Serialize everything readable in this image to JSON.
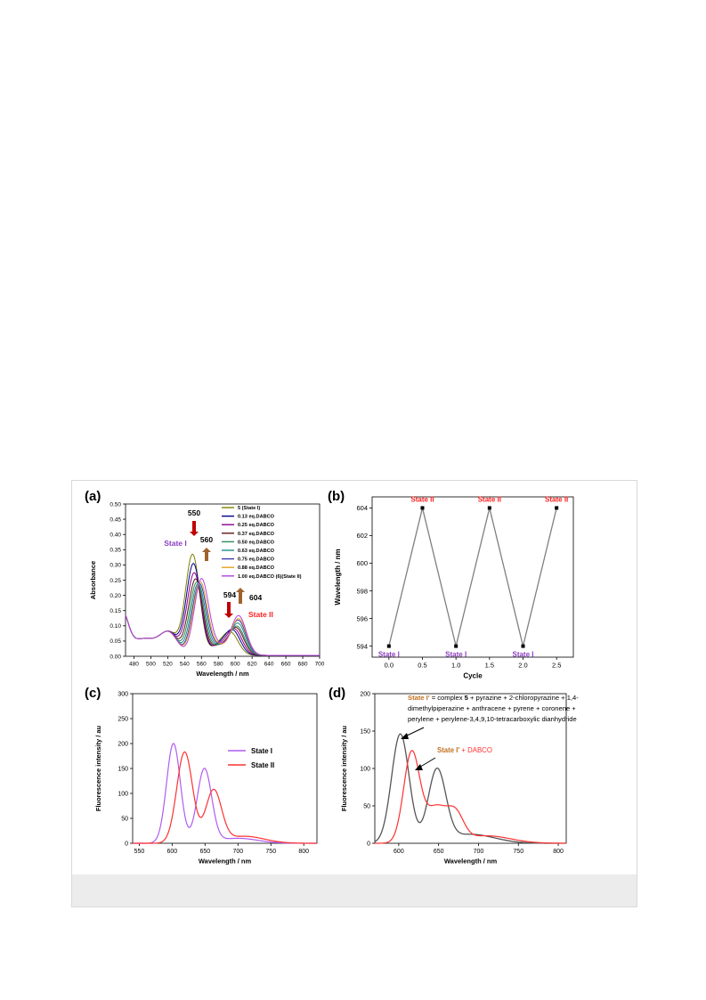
{
  "panels": [
    {
      "label": "(a)",
      "chart_data": {
        "type": "line",
        "xlabel": "Wavelength / nm",
        "ylabel": "Absorbance",
        "xlim": [
          470,
          700
        ],
        "ylim": [
          0,
          0.5
        ],
        "xticks": [
          480,
          500,
          520,
          540,
          560,
          580,
          600,
          620,
          640,
          660,
          680,
          700
        ],
        "yticks": [
          0.0,
          0.05,
          0.1,
          0.15,
          0.2,
          0.25,
          0.3,
          0.35,
          0.4,
          0.45,
          0.5
        ],
        "ytick_decimals": 2,
        "legend_position": "top-right",
        "series": [
          {
            "name": "5 (State I)",
            "color": "#808000",
            "p1": [
              549.5,
              0.38
            ],
            "p2": [
              595,
              0.11
            ]
          },
          {
            "name": "0.13 eq.DABCO",
            "color": "#00008b",
            "p1": [
              550.5,
              0.35
            ],
            "p2": [
              597,
              0.12
            ]
          },
          {
            "name": "0.25 eq.DABCO",
            "color": "#8b008b",
            "p1": [
              551.5,
              0.32
            ],
            "p2": [
              599,
              0.125
            ]
          },
          {
            "name": "0.37 eq.DABCO",
            "color": "#5c1a1a",
            "p1": [
              553,
              0.3
            ],
            "p2": [
              601,
              0.13
            ]
          },
          {
            "name": "0.50 eq.DABCO",
            "color": "#2e8b57",
            "p1": [
              554.5,
              0.29
            ],
            "p2": [
              602,
              0.135
            ]
          },
          {
            "name": "0.63 eq.DABCO",
            "color": "#1e8b8b",
            "p1": [
              556,
              0.285
            ],
            "p2": [
              603,
              0.145
            ]
          },
          {
            "name": "0.75 eq.DABCO",
            "color": "#3c3cb4",
            "p1": [
              557.5,
              0.285
            ],
            "p2": [
              603.5,
              0.155
            ]
          },
          {
            "name": "0.88 eq.DABCO",
            "color": "#e6a020",
            "p1": [
              558.5,
              0.29
            ],
            "p2": [
              604,
              0.16
            ]
          },
          {
            "name": "1.00 eq.DABCO (6)(State II)",
            "color": "#b040e0",
            "p1": [
              560,
              0.3
            ],
            "p2": [
              604,
              0.17
            ]
          }
        ],
        "annotations": {
          "peak_550": "550",
          "peak_560": "560",
          "peak_594": "594",
          "peak_604": "604",
          "state_i": "State I",
          "state_ii": "State II"
        },
        "arrow_colors": {
          "down": "#c00000",
          "up": "#a0622d"
        }
      }
    },
    {
      "label": "(b)",
      "chart_data": {
        "type": "line",
        "xlabel": "Cycle",
        "ylabel": "Wavelength / nm",
        "xlim": [
          -0.25,
          2.75
        ],
        "ylim": [
          593.2,
          604.8
        ],
        "xticks": [
          0.0,
          0.5,
          1.0,
          1.5,
          2.0,
          2.5
        ],
        "xtick_decimals": 1,
        "yticks": [
          594,
          596,
          598,
          600,
          602,
          604
        ],
        "x": [
          0.0,
          0.5,
          1.0,
          1.5,
          2.0,
          2.5
        ],
        "y": [
          594,
          604,
          594,
          604,
          594,
          604
        ],
        "point_labels": [
          "State I",
          "State II",
          "State I",
          "State II",
          "State I",
          "State II"
        ],
        "colors": {
          "line": "#808080",
          "state_i": "#8b3fc0",
          "state_ii": "#ff2020"
        }
      }
    },
    {
      "label": "(c)",
      "chart_data": {
        "type": "line",
        "xlabel": "Wavelength / nm",
        "ylabel": "Fluorescence intensity / au",
        "xlim": [
          540,
          820
        ],
        "ylim": [
          0,
          300
        ],
        "xticks": [
          550,
          600,
          650,
          700,
          750,
          800
        ],
        "yticks": [
          0,
          50,
          100,
          150,
          200,
          250,
          300
        ],
        "legend_position": "center-right",
        "series": [
          {
            "name": "State I",
            "color": "#b05cf0",
            "peaks": [
              [
                602,
                202
              ],
              [
                648,
                150
              ]
            ],
            "valley": [
              632,
              88
            ]
          },
          {
            "name": "State II",
            "color": "#ff3030",
            "peaks": [
              [
                619,
                185
              ],
              [
                661,
                108
              ]
            ],
            "valley": [
              648,
              63
            ]
          }
        ]
      }
    },
    {
      "label": "(d)",
      "chart_data": {
        "type": "line",
        "xlabel": "Wavelength / nm",
        "ylabel": "Fluorescence intensity / au",
        "xlim": [
          570,
          810
        ],
        "ylim": [
          0,
          200
        ],
        "xticks": [
          600,
          650,
          700,
          750,
          800
        ],
        "yticks": [
          0,
          50,
          100,
          150,
          200
        ],
        "series": [
          {
            "name": "State I'",
            "color": "#555555",
            "peaks": [
              [
                603,
                149
              ],
              [
                647,
                100
              ]
            ],
            "valley": [
              626,
              75
            ]
          },
          {
            "name": "State I' + DABCO",
            "color": "#ff3030",
            "peaks": [
              [
                615,
                133
              ]
            ],
            "shoulder": [
              [
                650,
                52
              ],
              [
                668,
                46
              ]
            ]
          }
        ],
        "annotation": {
          "state_label": "State I'",
          "line1_a": " = complex ",
          "complex_number": "5",
          "line1_b": " + pyrazine + 2-chloropyrazine + 1,4-",
          "line2": "dimethylpiperazine + anthracene + pyrene + coronene +",
          "line3": "perylene + perylene-3,4,9,10-tetracarboxylic dianhydride",
          "dabco_prefix": "State I'",
          "dabco_suffix": " + DABCO"
        },
        "colors": {
          "state_label": "#c07020",
          "dabco_label": "#ff3030"
        }
      }
    }
  ]
}
